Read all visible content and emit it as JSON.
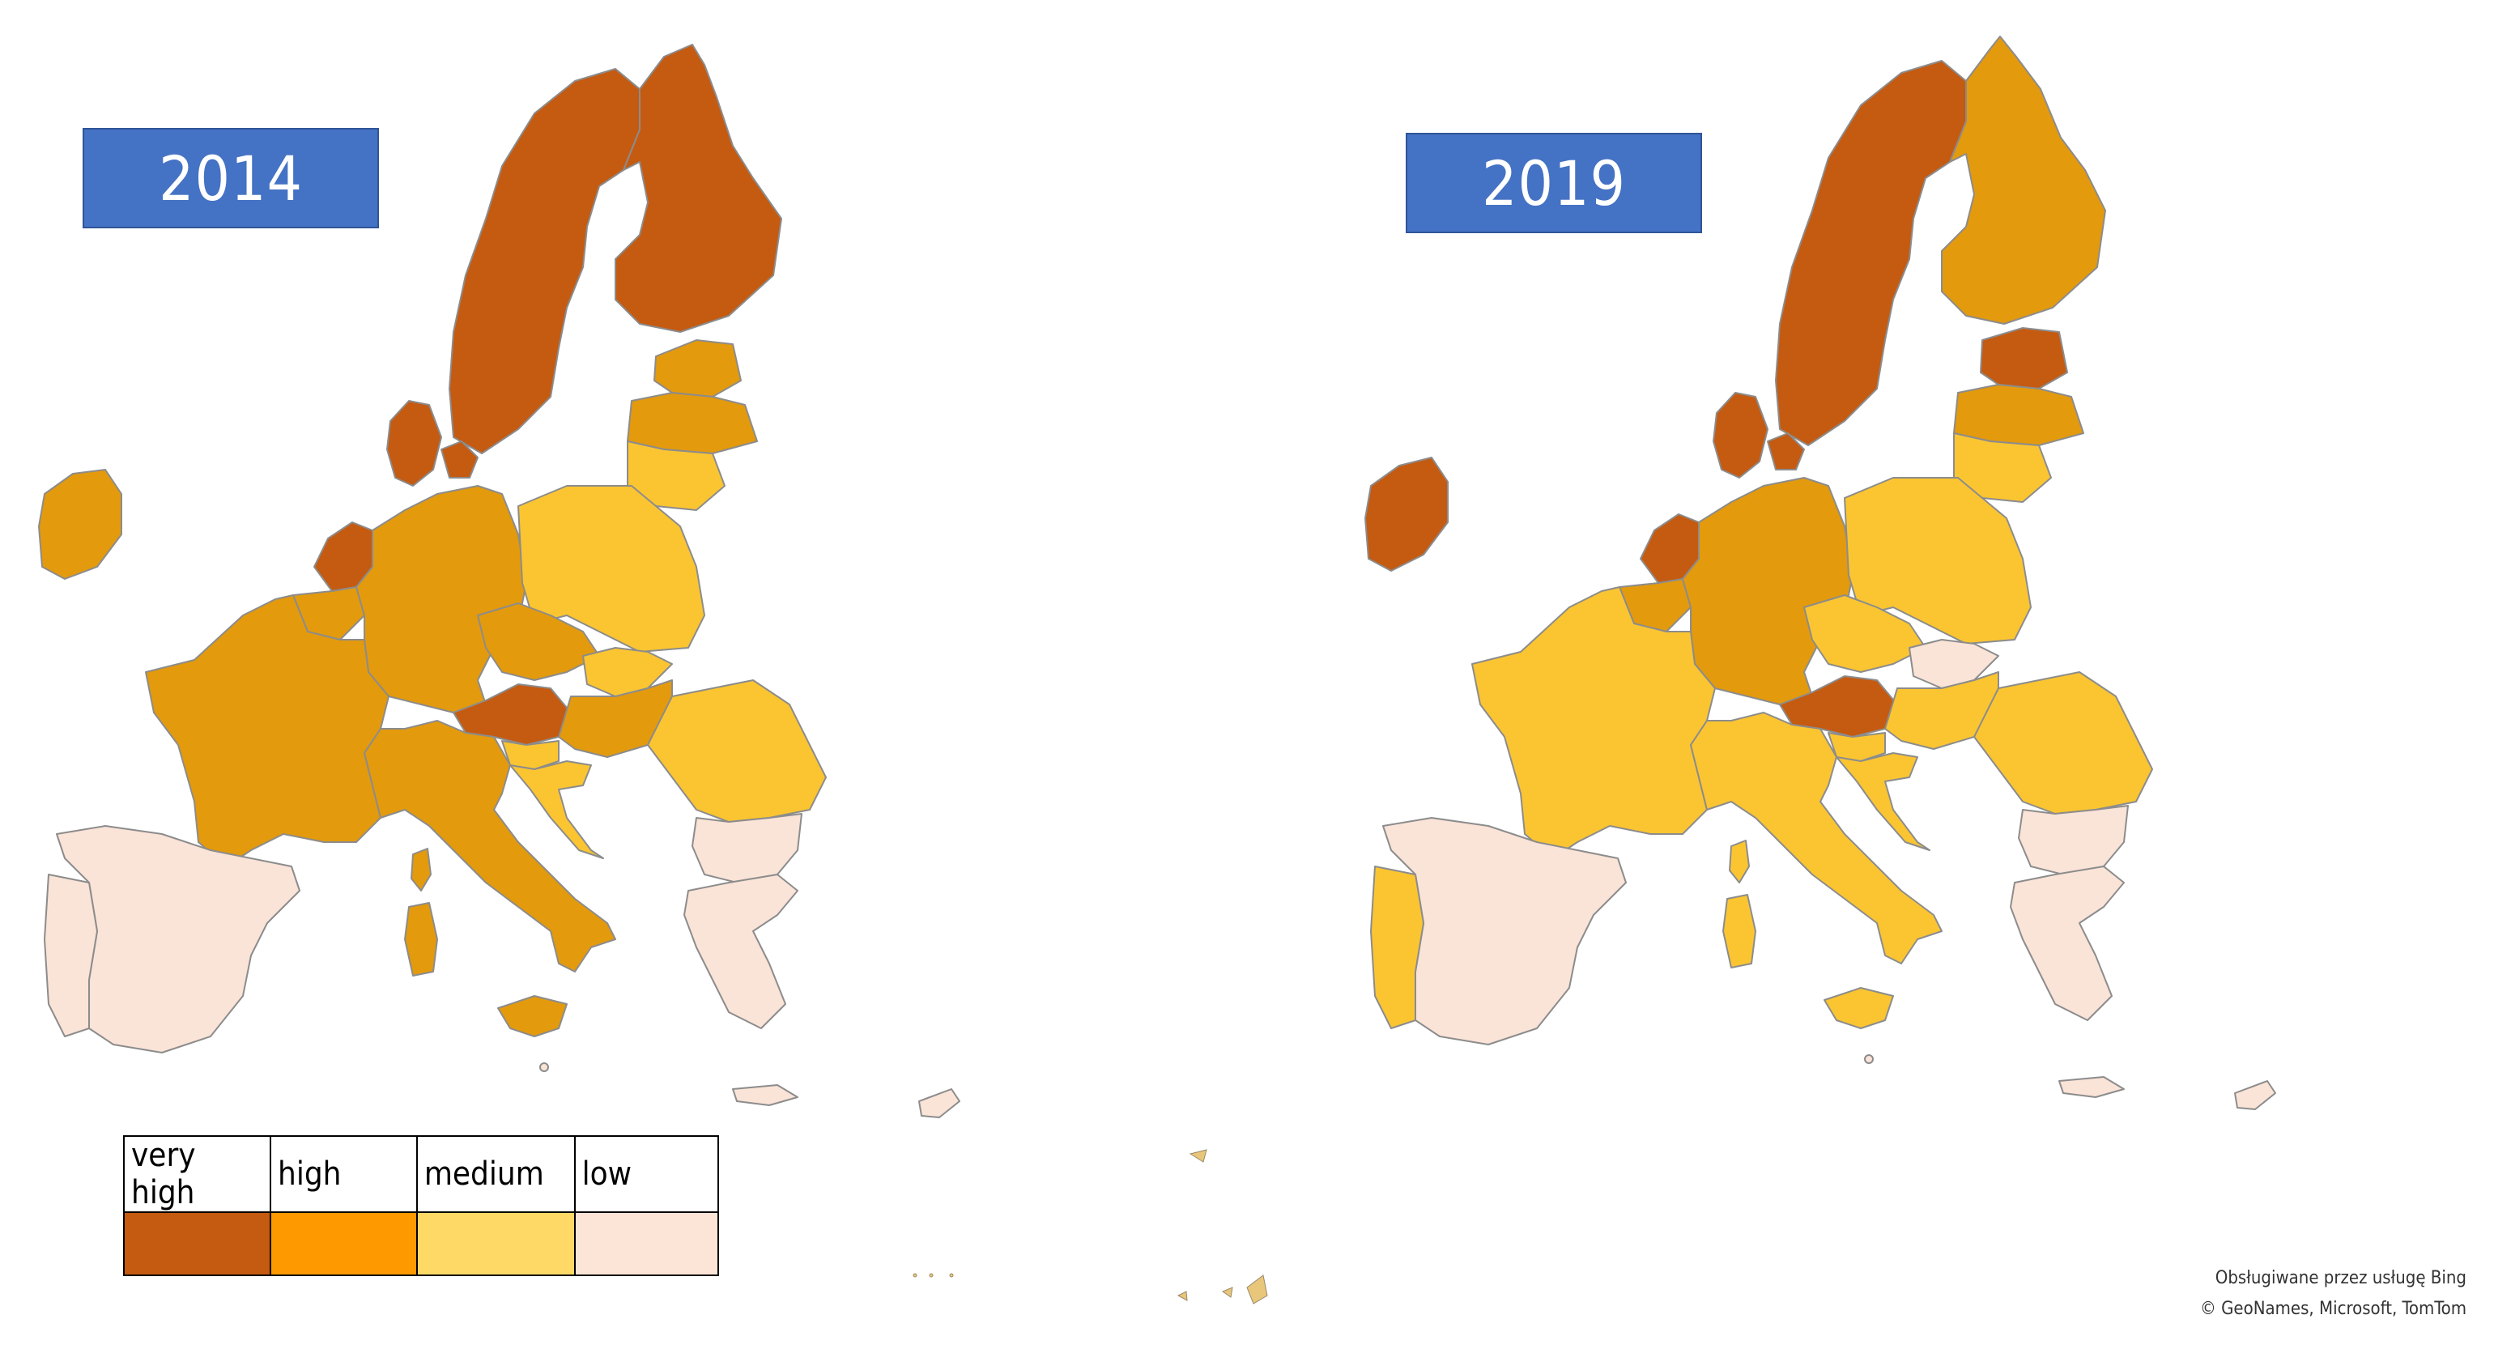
{
  "maps": [
    {
      "year": "2014",
      "colors": {
        "very_high": "#c55a11",
        "high": "#e39a0c",
        "medium": "#fbc531",
        "low": "#fae3d7"
      }
    },
    {
      "year": "2019",
      "colors": {
        "very_high": "#c55a11",
        "high": "#e39a0c",
        "medium": "#fbc531",
        "low": "#fae3d7"
      }
    }
  ],
  "legend": {
    "items": [
      {
        "label": "very high",
        "color": "#c55a11"
      },
      {
        "label": "high",
        "color": "#ff9900"
      },
      {
        "label": "medium",
        "color": "#ffd966"
      },
      {
        "label": "low",
        "color": "#fce4d6"
      }
    ]
  },
  "attribution": {
    "line1": "Obsługiwane przez usługę Bing",
    "line2": "© GeoNames, Microsoft, TomTom"
  }
}
